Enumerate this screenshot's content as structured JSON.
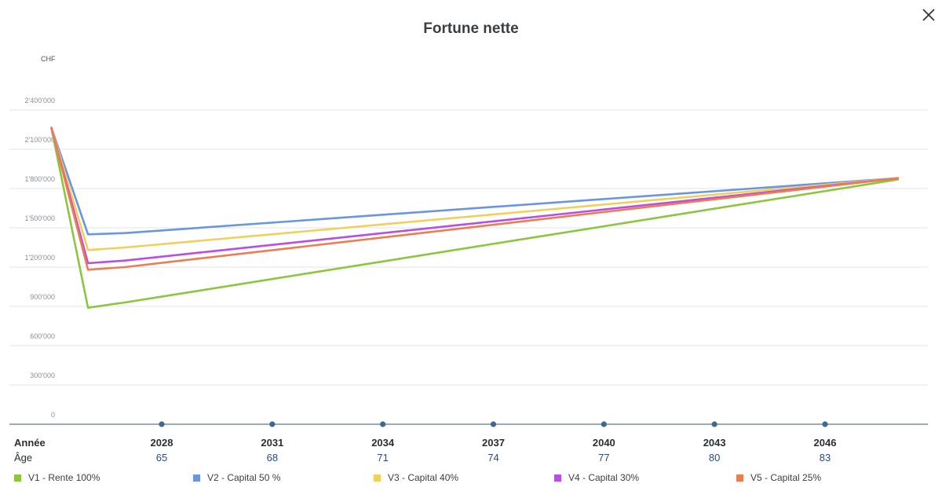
{
  "chart_data": {
    "type": "line",
    "title": "Fortune nette",
    "ylabel": "CHF",
    "xlabel": "Année",
    "ylim": [
      0,
      2400000
    ],
    "y_ticks": [
      "0",
      "300'000",
      "600'000",
      "900'000",
      "1'200'000",
      "1'500'000",
      "1'800'000",
      "2'100'000",
      "2'400'000"
    ],
    "y_tick_values": [
      0,
      300000,
      600000,
      900000,
      1200000,
      1500000,
      1800000,
      2100000,
      2400000
    ],
    "x_ticks": [
      2028,
      2031,
      2034,
      2037,
      2040,
      2043,
      2046
    ],
    "age_label": "Âge",
    "ages": [
      65,
      68,
      71,
      74,
      77,
      80,
      83
    ],
    "x": [
      2025,
      2026,
      2027,
      2048
    ],
    "grid": true,
    "legend_position": "bottom",
    "series": [
      {
        "name": "V1 - Rente 100%",
        "color": "#8cc63f",
        "values": [
          2270000,
          890000,
          930000,
          1870000
        ]
      },
      {
        "name": "V2 - Capital 50 %",
        "color": "#6a95e0",
        "values": [
          2270000,
          1450000,
          1460000,
          1880000
        ]
      },
      {
        "name": "V3 - Capital 40%",
        "color": "#f2cf5b",
        "values": [
          2270000,
          1330000,
          1350000,
          1880000
        ]
      },
      {
        "name": "V4 - Capital 30%",
        "color": "#b84fe0",
        "values": [
          2270000,
          1230000,
          1250000,
          1880000
        ]
      },
      {
        "name": "V5 - Capital 25%",
        "color": "#ec7d52",
        "values": [
          2270000,
          1180000,
          1200000,
          1880000
        ]
      }
    ]
  }
}
